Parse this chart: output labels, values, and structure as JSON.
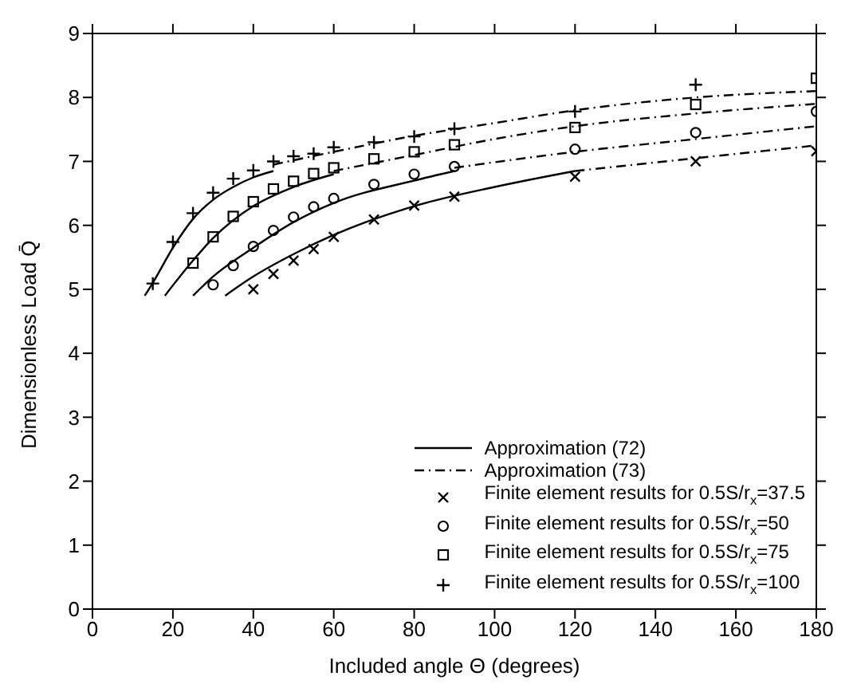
{
  "chart_data": {
    "type": "line",
    "xlabel": "Included angle Θ (degrees)",
    "ylabel": "Dimensionless Load Q̄",
    "xlim": [
      0,
      180
    ],
    "xticks": [
      0,
      20,
      40,
      60,
      80,
      100,
      120,
      140,
      160,
      180
    ],
    "ylim": [
      0,
      9
    ],
    "yticks": [
      0,
      1,
      2,
      3,
      4,
      5,
      6,
      7,
      8,
      9
    ],
    "legend": "bottom right",
    "series": [
      {
        "name": "Approximation (72)",
        "line_style": "solid",
        "color": "#000000",
        "x": [
          13,
          15,
          20,
          25,
          30,
          35,
          40,
          45
        ],
        "values": [
          4.9,
          5.1,
          5.65,
          6.1,
          6.4,
          6.6,
          6.75,
          6.85
        ]
      },
      {
        "line_style": "solid",
        "color": "#000000",
        "x": [
          18,
          25,
          30,
          40,
          50,
          60
        ],
        "values": [
          4.9,
          5.45,
          5.8,
          6.3,
          6.6,
          6.8
        ]
      },
      {
        "line_style": "solid",
        "color": "#000000",
        "x": [
          25,
          30,
          40,
          50,
          60,
          80,
          90
        ],
        "values": [
          4.9,
          5.2,
          5.65,
          6.05,
          6.35,
          6.7,
          6.85
        ]
      },
      {
        "line_style": "solid",
        "color": "#000000",
        "x": [
          33,
          40,
          50,
          60,
          80,
          100,
          120
        ],
        "values": [
          4.9,
          5.2,
          5.55,
          5.85,
          6.3,
          6.6,
          6.85
        ]
      },
      {
        "name": "Approximation (73)",
        "line_style": "dashdot",
        "color": "#000000",
        "x": [
          45,
          60,
          80,
          100,
          120,
          150,
          180
        ],
        "values": [
          6.95,
          7.15,
          7.4,
          7.6,
          7.8,
          8.0,
          8.1
        ]
      },
      {
        "line_style": "dashdot",
        "color": "#000000",
        "x": [
          60,
          80,
          100,
          120,
          150,
          180
        ],
        "values": [
          6.85,
          7.1,
          7.35,
          7.55,
          7.75,
          7.9
        ]
      },
      {
        "line_style": "dashdot",
        "color": "#000000",
        "x": [
          90,
          120,
          150,
          180
        ],
        "values": [
          6.9,
          7.15,
          7.35,
          7.55
        ]
      },
      {
        "line_style": "dashdot",
        "color": "#000000",
        "x": [
          120,
          150,
          180
        ],
        "values": [
          6.85,
          7.05,
          7.25
        ]
      },
      {
        "type": "scatter",
        "name": "Finite element results for 0.5S/r$_{x}$=37.5",
        "marker": "cross",
        "color": "#000000",
        "x": [
          40,
          45,
          50,
          55,
          60,
          70,
          80,
          90,
          120,
          150,
          180
        ],
        "values": [
          5.0,
          5.24,
          5.45,
          5.63,
          5.82,
          6.09,
          6.31,
          6.45,
          6.76,
          7.0,
          7.16
        ]
      },
      {
        "type": "scatter",
        "name": "Finite element results for 0.5S/r$_{x}$=50",
        "marker": "circle",
        "color": "#000000",
        "x": [
          30,
          35,
          40,
          45,
          50,
          55,
          60,
          70,
          80,
          90,
          120,
          150,
          180
        ],
        "values": [
          5.07,
          5.37,
          5.67,
          5.92,
          6.13,
          6.29,
          6.42,
          6.64,
          6.8,
          6.92,
          7.19,
          7.45,
          7.78
        ]
      },
      {
        "type": "scatter",
        "name": "Finite element results for 0.5S/r$_{x}$=75",
        "marker": "square",
        "color": "#000000",
        "x": [
          25,
          30,
          35,
          40,
          45,
          50,
          55,
          60,
          70,
          80,
          90,
          120,
          150,
          180
        ],
        "values": [
          5.41,
          5.82,
          6.14,
          6.37,
          6.57,
          6.69,
          6.81,
          6.9,
          7.04,
          7.15,
          7.26,
          7.53,
          7.89,
          8.3
        ]
      },
      {
        "type": "scatter",
        "name": "Finite element results for 0.5S/r$_{x}$=100",
        "marker": "plus",
        "color": "#000000",
        "x": [
          15,
          20,
          25,
          30,
          35,
          40,
          45,
          50,
          55,
          60,
          70,
          80,
          90,
          120,
          150
        ],
        "values": [
          5.09,
          5.74,
          6.19,
          6.51,
          6.73,
          6.86,
          7.0,
          7.08,
          7.12,
          7.22,
          7.3,
          7.39,
          7.51,
          7.78,
          8.2
        ]
      }
    ]
  }
}
